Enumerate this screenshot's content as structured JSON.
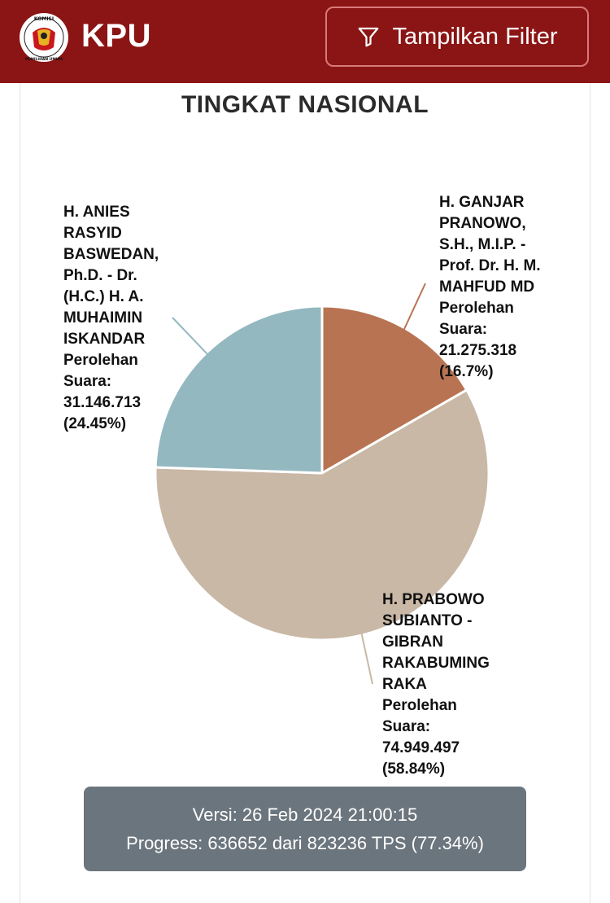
{
  "header": {
    "brand": "KPU",
    "logo_text_top": "KOMISI",
    "logo_text_bottom": "PEMILIHAN UMUM",
    "filter_label": "Tampilkan Filter",
    "filter_icon": "funnel-icon",
    "bg_color": "#8b1414"
  },
  "chart_data": {
    "type": "pie",
    "title": "TINGKAT NASIONAL",
    "slices": [
      {
        "label_lines": [
          "H. GANJAR",
          "PRANOWO,",
          "S.H., M.I.P. -",
          "Prof. Dr. H. M.",
          "MAHFUD MD",
          "Perolehan",
          "Suara:",
          "21.275.318",
          "(16.7%)"
        ],
        "votes": 21275318,
        "percent": 16.7,
        "color": "#b87452"
      },
      {
        "label_lines": [
          "H. PRABOWO",
          "SUBIANTO -",
          "GIBRAN",
          "RAKABUMING",
          "RAKA",
          "Perolehan",
          "Suara:",
          "74.949.497",
          "(58.84%)"
        ],
        "votes": 74949497,
        "percent": 58.84,
        "color": "#c9b8a6"
      },
      {
        "label_lines": [
          "H. ANIES",
          "RASYID",
          "BASWEDAN,",
          "Ph.D. - Dr.",
          "(H.C.) H. A.",
          "MUHAIMIN",
          "ISKANDAR",
          "Perolehan",
          "Suara:",
          "31.146.713",
          "(24.45%)"
        ],
        "votes": 31146713,
        "percent": 24.45,
        "color": "#93b8c0"
      }
    ]
  },
  "footer": {
    "version": "Versi: 26 Feb 2024 21:00:15",
    "progress": "Progress: 636652 dari 823236 TPS (77.34%)"
  }
}
